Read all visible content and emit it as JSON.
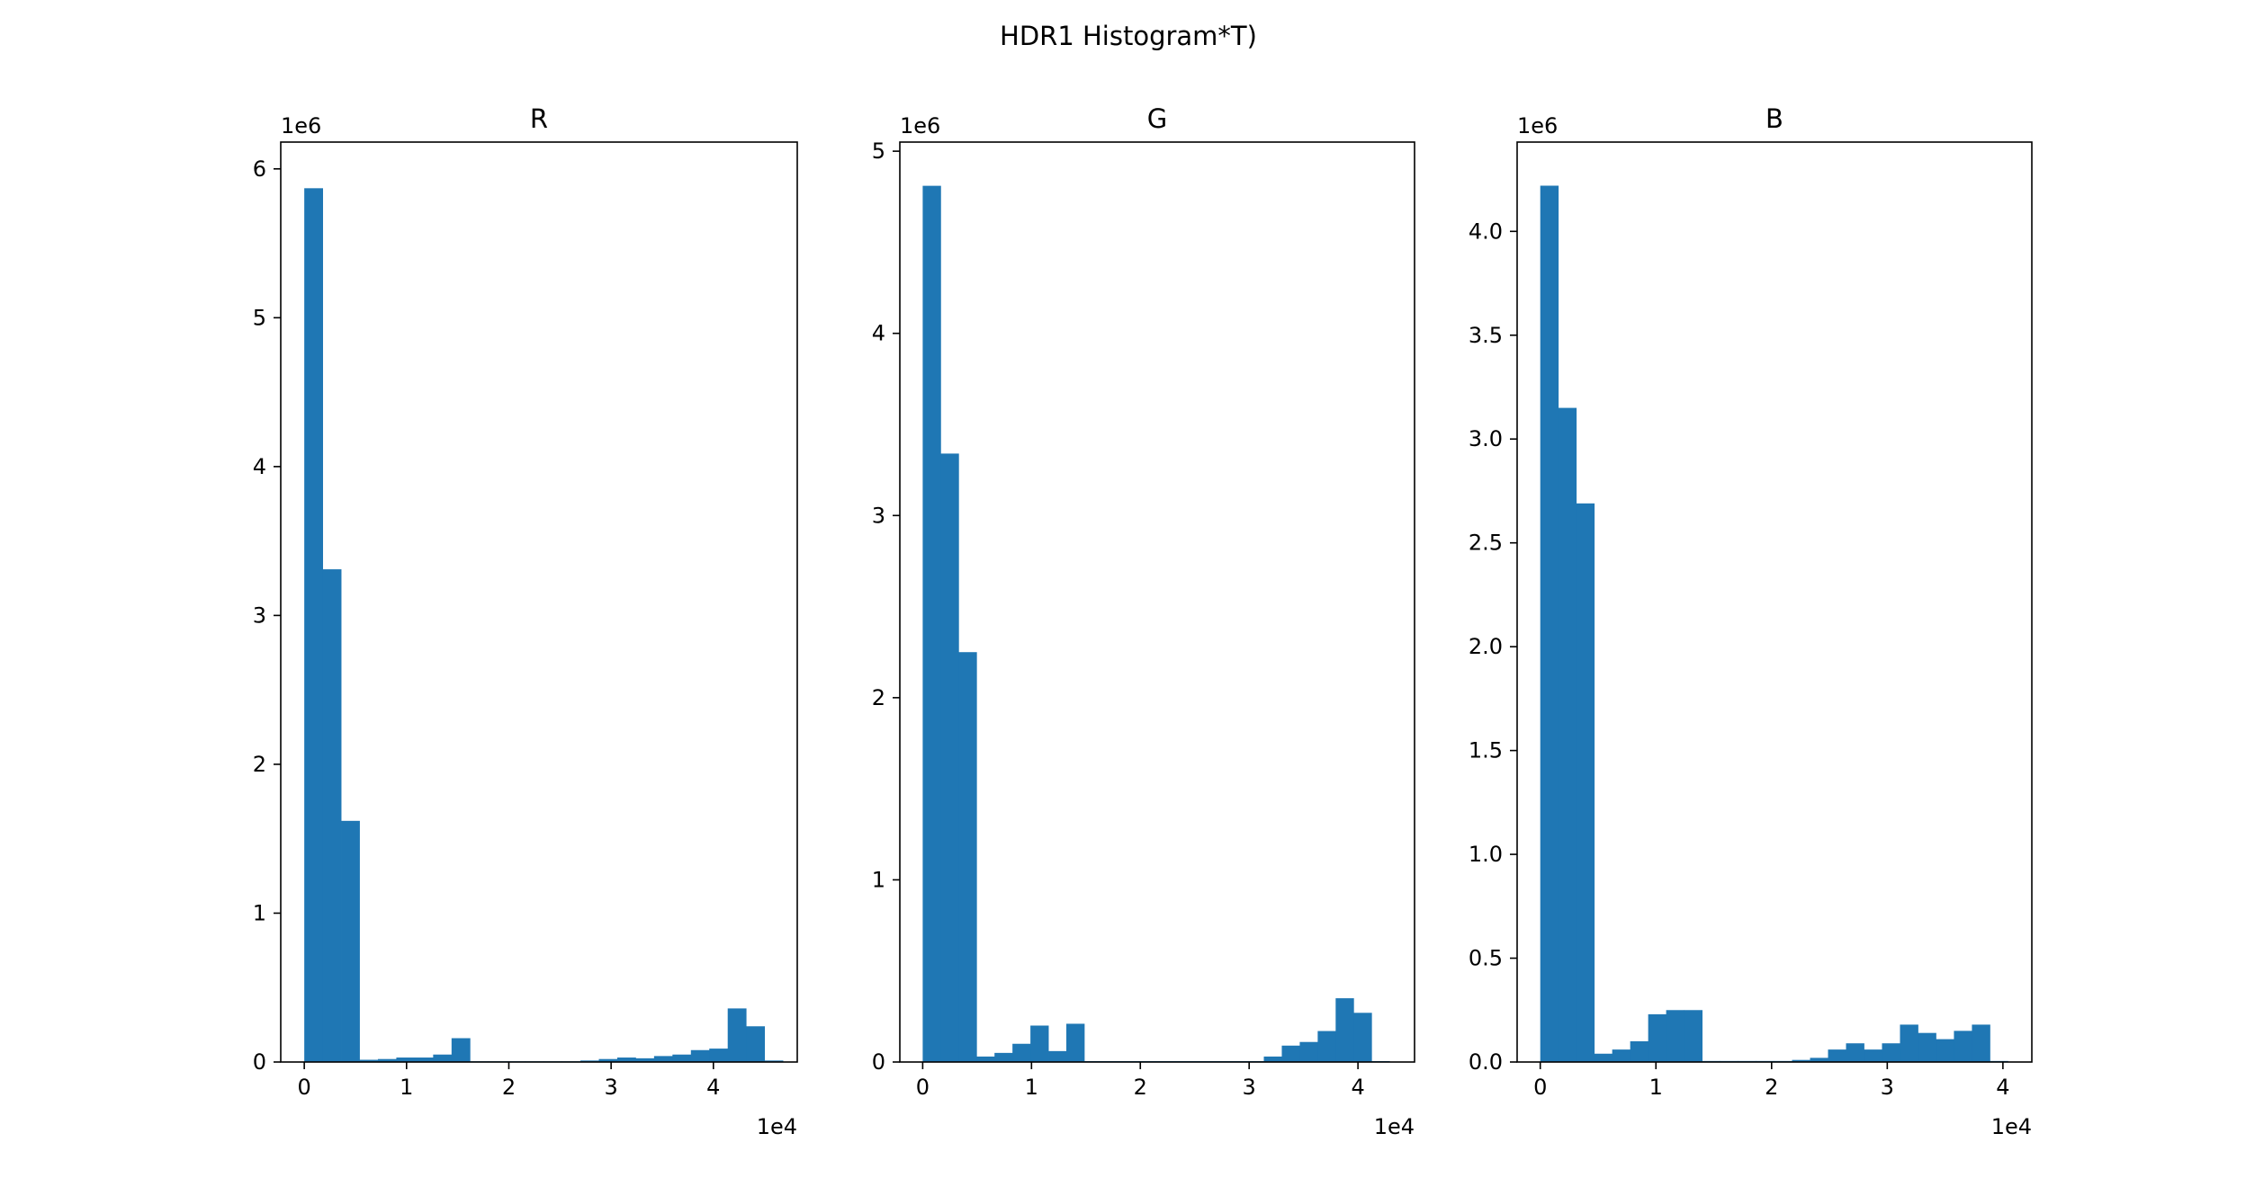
{
  "figure": {
    "title": "HDR1 Histogram*T)",
    "bar_color": "#1f77b4"
  },
  "chart_data": [
    {
      "type": "bar",
      "title": "R",
      "xlabel": "",
      "ylabel": "",
      "x_multiplier": "1e4",
      "y_multiplier": "1e6",
      "xlim": [
        -2300,
        48200
      ],
      "ylim": [
        0,
        6.18
      ],
      "xticks": [
        0,
        1,
        2,
        3,
        4
      ],
      "yticks": [
        0,
        1,
        2,
        3,
        4,
        5,
        6
      ],
      "grid": false,
      "bin_start": 0,
      "bin_width": 1800,
      "values": [
        5.87,
        3.31,
        1.62,
        0.015,
        0.02,
        0.03,
        0.03,
        0.05,
        0.16,
        0.005,
        0.005,
        0.005,
        0.005,
        0.005,
        0.005,
        0.01,
        0.02,
        0.03,
        0.025,
        0.04,
        0.05,
        0.08,
        0.09,
        0.36,
        0.24,
        0.01
      ]
    },
    {
      "type": "bar",
      "title": "G",
      "xlabel": "",
      "ylabel": "",
      "x_multiplier": "1e4",
      "y_multiplier": "1e6",
      "xlim": [
        -2100,
        45200
      ],
      "ylim": [
        0,
        5.05
      ],
      "xticks": [
        0,
        1,
        2,
        3,
        4
      ],
      "yticks": [
        0,
        1,
        2,
        3,
        4,
        5
      ],
      "grid": false,
      "bin_start": 0,
      "bin_width": 1650,
      "values": [
        4.81,
        3.34,
        2.25,
        0.03,
        0.05,
        0.1,
        0.2,
        0.06,
        0.21,
        0.005,
        0.005,
        0.005,
        0.005,
        0.005,
        0.005,
        0.005,
        0.005,
        0.005,
        0.005,
        0.03,
        0.09,
        0.11,
        0.17,
        0.35,
        0.27,
        0.005
      ]
    },
    {
      "type": "bar",
      "title": "B",
      "xlabel": "",
      "ylabel": "",
      "x_multiplier": "1e4",
      "y_multiplier": "1e6",
      "xlim": [
        -2000,
        42500
      ],
      "ylim": [
        0,
        4.43
      ],
      "xticks": [
        0,
        1,
        2,
        3,
        4
      ],
      "yticks": [
        0.0,
        0.5,
        1.0,
        1.5,
        2.0,
        2.5,
        3.0,
        3.5,
        4.0
      ],
      "ytick_labels": [
        "0.0",
        "0.5",
        "1.0",
        "1.5",
        "2.0",
        "2.5",
        "3.0",
        "3.5",
        "4.0"
      ],
      "grid": false,
      "bin_start": 0,
      "bin_width": 1555,
      "values": [
        4.22,
        3.15,
        2.69,
        0.04,
        0.06,
        0.1,
        0.23,
        0.25,
        0.25,
        0.005,
        0.005,
        0.005,
        0.005,
        0.005,
        0.01,
        0.02,
        0.06,
        0.09,
        0.06,
        0.09,
        0.18,
        0.14,
        0.11,
        0.15,
        0.18,
        0.005
      ]
    }
  ]
}
